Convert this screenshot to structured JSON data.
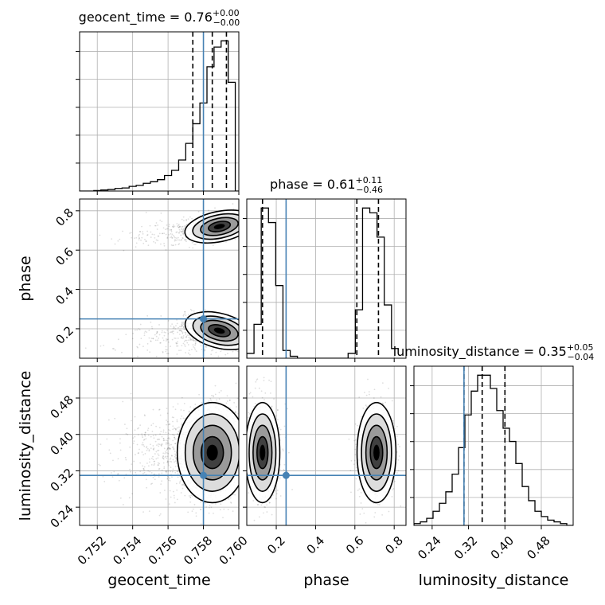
{
  "chart_data": {
    "type": "corner",
    "params": [
      "geocent_time",
      "phase",
      "luminosity_distance"
    ],
    "truths": {
      "geocent_time": 0.758,
      "phase": 0.25,
      "luminosity_distance": 0.31
    },
    "titles": [
      {
        "param": "geocent_time",
        "base": "geocent_time = 0.76",
        "plus": "+0.00",
        "minus": "−0.00"
      },
      {
        "param": "phase",
        "base": "phase = 0.61",
        "plus": "+0.11",
        "minus": "−0.46"
      },
      {
        "param": "luminosity_distance",
        "base": "luminosity_distance = 0.35",
        "plus": "+0.05",
        "minus": "−0.04"
      }
    ],
    "axes": {
      "geocent_time": {
        "range": [
          0.751,
          0.76
        ],
        "ticks": [
          0.752,
          0.754,
          0.756,
          0.758,
          0.76
        ],
        "tick_labels": [
          "0.752",
          "0.754",
          "0.756",
          "0.758",
          "0.760"
        ]
      },
      "phase": {
        "range": [
          0.05,
          0.86
        ],
        "ticks": [
          0.2,
          0.4,
          0.6,
          0.8
        ],
        "tick_labels": [
          "0.2",
          "0.4",
          "0.6",
          "0.8"
        ]
      },
      "luminosity_distance": {
        "range": [
          0.2,
          0.55
        ],
        "ticks": [
          0.24,
          0.32,
          0.4,
          0.48
        ],
        "tick_labels": [
          "0.24",
          "0.32",
          "0.40",
          "0.48"
        ]
      }
    },
    "histograms": {
      "geocent_time": {
        "edges": [
          0.751,
          0.7514,
          0.7518,
          0.7522,
          0.7526,
          0.753,
          0.7534,
          0.7538,
          0.7542,
          0.7546,
          0.755,
          0.7554,
          0.7558,
          0.7562,
          0.7566,
          0.757,
          0.7574,
          0.7578,
          0.7582,
          0.7586,
          0.759,
          0.7594,
          0.7598,
          0.76
        ],
        "counts": [
          0,
          0,
          1,
          2,
          3,
          5,
          6,
          9,
          11,
          15,
          18,
          22,
          30,
          40,
          60,
          92,
          130,
          170,
          240,
          278,
          290,
          210,
          0
        ],
        "quantiles": [
          0.7574,
          0.7585,
          0.7593
        ]
      },
      "phase": {
        "edges": [
          0.05,
          0.0868,
          0.1236,
          0.1605,
          0.1973,
          0.2341,
          0.2709,
          0.3077,
          0.3445,
          0.3814,
          0.4182,
          0.455,
          0.4918,
          0.5286,
          0.5655,
          0.6023,
          0.6391,
          0.6759,
          0.7127,
          0.7495,
          0.7864,
          0.8232
        ],
        "counts": [
          5,
          35,
          155,
          140,
          75,
          8,
          2,
          0,
          0,
          0,
          0,
          0,
          0,
          0,
          5,
          50,
          155,
          150,
          125,
          55,
          10
        ],
        "quantiles": [
          0.13,
          0.61,
          0.72
        ]
      },
      "luminosity_distance": {
        "edges": [
          0.2,
          0.214,
          0.228,
          0.242,
          0.256,
          0.27,
          0.284,
          0.298,
          0.312,
          0.326,
          0.34,
          0.354,
          0.368,
          0.382,
          0.396,
          0.41,
          0.424,
          0.438,
          0.452,
          0.466,
          0.48,
          0.494,
          0.508,
          0.522,
          0.536,
          0.55
        ],
        "counts": [
          2,
          4,
          8,
          16,
          25,
          38,
          58,
          88,
          125,
          152,
          170,
          170,
          155,
          130,
          110,
          95,
          70,
          44,
          28,
          16,
          10,
          6,
          4,
          2,
          0
        ],
        "quantiles": [
          0.31,
          0.35,
          0.4
        ]
      }
    },
    "pairs": [
      {
        "x": "geocent_time",
        "y": "phase",
        "clusters": [
          {
            "cx": 0.7589,
            "cy": 0.72,
            "sx": 0.0009,
            "sy": 0.035,
            "rho": 0.35,
            "n": 900,
            "tail_dir": [
              -1,
              -0.45
            ]
          },
          {
            "cx": 0.7589,
            "cy": 0.19,
            "sx": 0.0009,
            "sy": 0.04,
            "rho": -0.45,
            "n": 1100,
            "tail_dir": [
              -1,
              -0.5
            ]
          }
        ]
      },
      {
        "x": "geocent_time",
        "y": "luminosity_distance",
        "clusters": [
          {
            "cx": 0.7585,
            "cy": 0.36,
            "sx": 0.0009,
            "sy": 0.05,
            "rho": 0.0,
            "n": 2200,
            "tail_dir": [
              -1,
              0
            ]
          }
        ]
      },
      {
        "x": "phase",
        "y": "luminosity_distance",
        "clusters": [
          {
            "cx": 0.13,
            "cy": 0.36,
            "sx": 0.04,
            "sy": 0.05,
            "rho": 0.0,
            "n": 1100
          },
          {
            "cx": 0.71,
            "cy": 0.36,
            "sx": 0.045,
            "sy": 0.05,
            "rho": 0.0,
            "n": 1100
          }
        ]
      }
    ],
    "colors": {
      "truth": "#4682b4",
      "contour": "#000000",
      "points": "#000000",
      "grid": "#b0b0b0"
    },
    "grid": true
  }
}
